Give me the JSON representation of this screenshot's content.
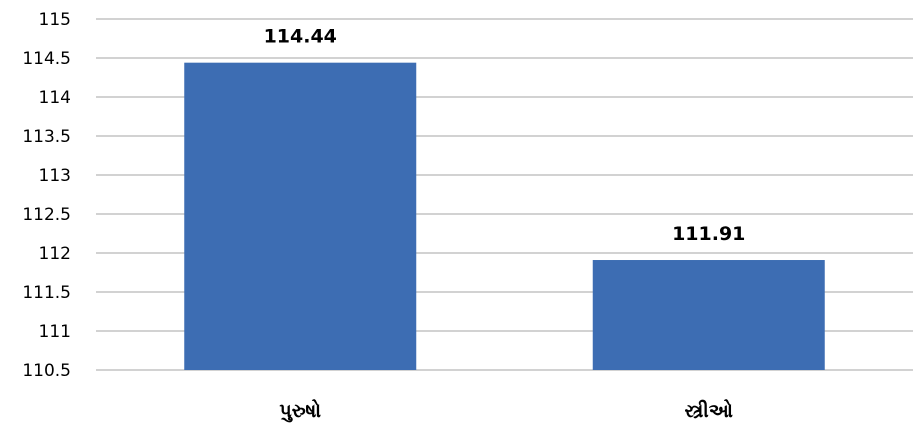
{
  "chart_data": {
    "type": "bar",
    "categories": [
      "પુરુષો",
      "સ્ત્રીઓ"
    ],
    "values": [
      114.44,
      111.91
    ],
    "data_labels": [
      "114.44",
      "111.91"
    ],
    "y_ticks": [
      "110.5",
      "111",
      "111.5",
      "112",
      "112.5",
      "113",
      "113.5",
      "114",
      "114.5",
      "115"
    ],
    "ylim": [
      110.5,
      115
    ],
    "grid": true,
    "bar_color": "#3d6db3",
    "title": "",
    "xlabel": "",
    "ylabel": ""
  }
}
